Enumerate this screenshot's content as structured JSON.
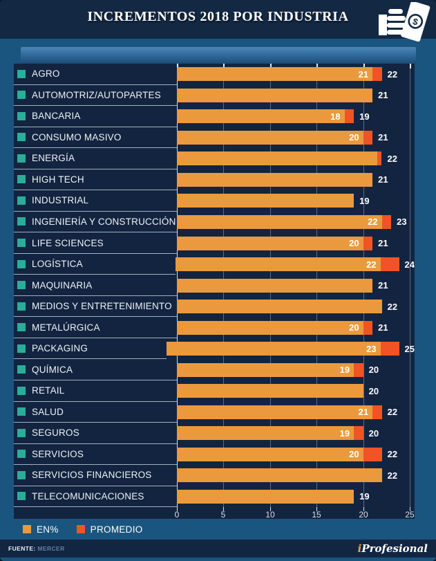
{
  "header": {
    "title": "INCREMENTOS 2018 POR INDUSTRIA",
    "icon_dollar": "$"
  },
  "axis": {
    "ticks": [
      0,
      5,
      10,
      15,
      20,
      25
    ],
    "max": 25
  },
  "rows": [
    {
      "label": "AGRO",
      "en_pct": 21,
      "promedio": 22,
      "inside_label": "21",
      "outside_label": "22"
    },
    {
      "label": "AUTOMOTRIZ/AUTOPARTES",
      "en_pct": 21,
      "promedio": 21,
      "inside_label": "",
      "outside_label": "21"
    },
    {
      "label": "BANCARIA",
      "en_pct": 18,
      "promedio": 19,
      "inside_label": "18",
      "outside_label": "19"
    },
    {
      "label": "CONSUMO MASIVO",
      "en_pct": 20,
      "promedio": 21,
      "inside_label": "20",
      "outside_label": "21"
    },
    {
      "label": "ENERGÍA",
      "en_pct": 21.5,
      "promedio": 22,
      "inside_label": "",
      "outside_label": "22"
    },
    {
      "label": "HIGH TECH",
      "en_pct": 21,
      "promedio": 21,
      "inside_label": "",
      "outside_label": "21"
    },
    {
      "label": "INDUSTRIAL",
      "en_pct": 19,
      "promedio": 19,
      "inside_label": "",
      "outside_label": "19"
    },
    {
      "label": "INGENIERÍA Y CONSTRUCCIÓN",
      "en_pct": 22,
      "promedio": 23,
      "inside_label": "22",
      "outside_label": "23"
    },
    {
      "label": "LIFE SCIENCES",
      "en_pct": 20,
      "promedio": 21,
      "inside_label": "20",
      "outside_label": "21"
    },
    {
      "label": "LOGÍSTICA",
      "en_pct": 22,
      "promedio": 24,
      "inside_label": "22",
      "outside_label": "24"
    },
    {
      "label": "MAQUINARIA",
      "en_pct": 21,
      "promedio": 21,
      "inside_label": "",
      "outside_label": "21"
    },
    {
      "label": "MEDIOS Y ENTRETENIMIENTO",
      "en_pct": 22,
      "promedio": 22,
      "inside_label": "",
      "outside_label": "22"
    },
    {
      "label": "METALÚRGICA",
      "en_pct": 20,
      "promedio": 21,
      "inside_label": "20",
      "outside_label": "21"
    },
    {
      "label": "PACKAGING",
      "en_pct": 23,
      "promedio": 25,
      "inside_label": "23",
      "outside_label": "25"
    },
    {
      "label": "QUÍMICA",
      "en_pct": 19,
      "promedio": 20,
      "inside_label": "19",
      "outside_label": "20"
    },
    {
      "label": "RETAIL",
      "en_pct": 20,
      "promedio": 20,
      "inside_label": "",
      "outside_label": "20"
    },
    {
      "label": "SALUD",
      "en_pct": 21,
      "promedio": 22,
      "inside_label": "21",
      "outside_label": "22"
    },
    {
      "label": "SEGUROS",
      "en_pct": 19,
      "promedio": 20,
      "inside_label": "19",
      "outside_label": "20"
    },
    {
      "label": "SERVICIOS",
      "en_pct": 20,
      "promedio": 22,
      "inside_label": "20",
      "outside_label": "22"
    },
    {
      "label": "SERVICIOS FINANCIEROS",
      "en_pct": 22,
      "promedio": 22,
      "inside_label": "",
      "outside_label": "22"
    },
    {
      "label": "TELECOMUNICACIONES",
      "en_pct": 19,
      "promedio": 19,
      "inside_label": "",
      "outside_label": "19"
    }
  ],
  "legend": {
    "items": [
      {
        "label": "EN%",
        "color": "#EA9A3D"
      },
      {
        "label": "PROMEDIO",
        "color": "#F05425"
      }
    ]
  },
  "footer": {
    "source_label": "FUENTE:",
    "source_value": "MERCER",
    "brand_i": "i",
    "brand_rest": "Profesional"
  },
  "colors": {
    "frame_blue": "#1A557F",
    "header_navy": "#132843",
    "panel_navy": "#132440",
    "bar_orange": "#EA9A3D",
    "bar_red_orange": "#F05425",
    "bullet_teal": "#2BAD99",
    "gridline": "#7E93A6",
    "text_light": "#EFF3F7",
    "brand_accent": "#E8A33D"
  },
  "chart_data": {
    "type": "bar",
    "orientation": "horizontal",
    "title": "INCREMENTOS 2018 POR INDUSTRIA",
    "categories": [
      "AGRO",
      "AUTOMOTRIZ/AUTOPARTES",
      "BANCARIA",
      "CONSUMO MASIVO",
      "ENERGÍA",
      "HIGH TECH",
      "INDUSTRIAL",
      "INGENIERÍA Y CONSTRUCCIÓN",
      "LIFE SCIENCES",
      "LOGÍSTICA",
      "MAQUINARIA",
      "MEDIOS Y ENTRETENIMIENTO",
      "METALÚRGICA",
      "PACKAGING",
      "QUÍMICA",
      "RETAIL",
      "SALUD",
      "SEGUROS",
      "SERVICIOS",
      "SERVICIOS FINANCIEROS",
      "TELECOMUNICACIONES"
    ],
    "series": [
      {
        "name": "EN%",
        "values": [
          21,
          21,
          18,
          20,
          21.5,
          21,
          19,
          22,
          20,
          22,
          21,
          22,
          20,
          23,
          19,
          20,
          21,
          19,
          20,
          22,
          19
        ]
      },
      {
        "name": "PROMEDIO",
        "values": [
          22,
          21,
          19,
          21,
          22,
          21,
          19,
          23,
          21,
          24,
          21,
          22,
          21,
          25,
          20,
          20,
          22,
          20,
          22,
          22,
          19
        ]
      }
    ],
    "xlim": [
      0,
      25
    ],
    "xticks": [
      0,
      5,
      10,
      15,
      20,
      25
    ],
    "grid": true,
    "legend_position": "bottom",
    "source": "MERCER"
  }
}
